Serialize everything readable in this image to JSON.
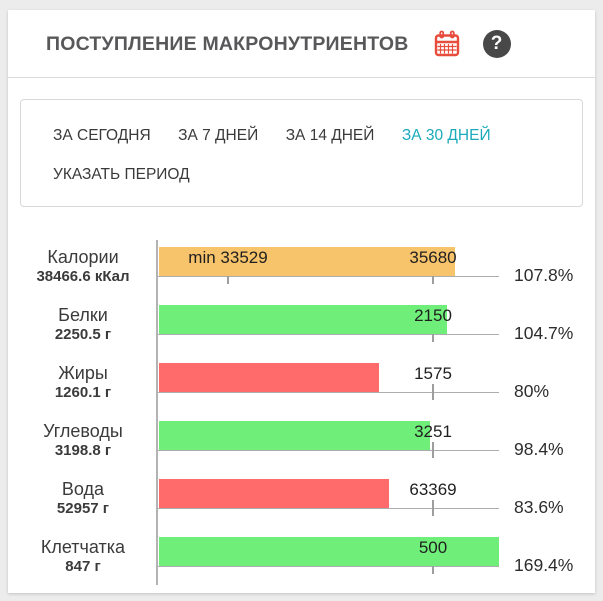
{
  "header": {
    "title": "ПОСТУПЛЕНИЕ МАКРОНУТРИЕНТОВ"
  },
  "icons": {
    "calendar": "calendar-icon",
    "help": "help-icon",
    "help_glyph": "?"
  },
  "period_selector": {
    "tabs": [
      {
        "label": "ЗА СЕГОДНЯ",
        "active": false
      },
      {
        "label": "ЗА 7 ДНЕЙ",
        "active": false
      },
      {
        "label": "ЗА 14 ДНЕЙ",
        "active": false
      },
      {
        "label": "ЗА 30 ДНЕЙ",
        "active": true
      },
      {
        "label": "УКАЗАТЬ ПЕРИОД",
        "active": false
      }
    ]
  },
  "colors": {
    "accent_teal": "#1BAABB",
    "bar_orange": "#F7C36B",
    "bar_green": "#6FEF7A",
    "bar_red": "#FF6B6B",
    "calendar_red": "#E74C3C",
    "help_circle": "#484848"
  },
  "chart_data": {
    "type": "bar",
    "orientation": "horizontal",
    "title": "ПОСТУПЛЕНИЕ МАКРОНУТРИЕНТОВ",
    "period": "ЗА 30 ДНЕЙ",
    "percent_axis": {
      "norm_tick_percent": 100,
      "visible_max_percent": 124
    },
    "rows": [
      {
        "name": "Калории",
        "amount_label": "38466.6 кКал",
        "consumed": 38466.6,
        "unit": "кКал",
        "norm": 35680,
        "norm_label": "35680",
        "min_norm": 33529,
        "min_label": "min 33529",
        "percent": 107.8,
        "percent_label": "107.8%",
        "color": "orange"
      },
      {
        "name": "Белки",
        "amount_label": "2250.5 г",
        "consumed": 2250.5,
        "unit": "г",
        "norm": 2150,
        "norm_label": "2150",
        "percent": 104.7,
        "percent_label": "104.7%",
        "color": "green"
      },
      {
        "name": "Жиры",
        "amount_label": "1260.1 г",
        "consumed": 1260.1,
        "unit": "г",
        "norm": 1575,
        "norm_label": "1575",
        "percent": 80,
        "percent_label": "80%",
        "color": "red"
      },
      {
        "name": "Углеводы",
        "amount_label": "3198.8 г",
        "consumed": 3198.8,
        "unit": "г",
        "norm": 3251,
        "norm_label": "3251",
        "percent": 98.4,
        "percent_label": "98.4%",
        "color": "green"
      },
      {
        "name": "Вода",
        "amount_label": "52957 г",
        "consumed": 52957,
        "unit": "г",
        "norm": 63369,
        "norm_label": "63369",
        "percent": 83.6,
        "percent_label": "83.6%",
        "color": "red"
      },
      {
        "name": "Клетчатка",
        "amount_label": "847 г",
        "consumed": 847,
        "unit": "г",
        "norm": 500,
        "norm_label": "500",
        "percent": 169.4,
        "percent_label": "169.4%",
        "color": "green",
        "clipped": true
      }
    ]
  }
}
